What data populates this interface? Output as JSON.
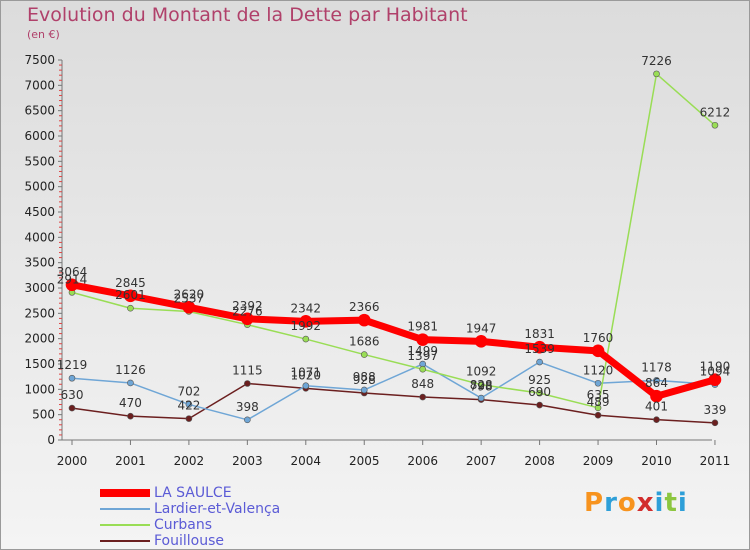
{
  "title": "Evolution du Montant de la Dette par Habitant",
  "unit": "(en €)",
  "logo": {
    "text": "Proxiti",
    "colors": [
      "#f7931e",
      "#2e9fd8",
      "#f7931e",
      "#d22d2d",
      "#2e9fd8",
      "#8cc63f",
      "#2e9fd8"
    ]
  },
  "chart_data": {
    "type": "line",
    "categories": [
      "2000",
      "2001",
      "2002",
      "2003",
      "2004",
      "2005",
      "2006",
      "2007",
      "2008",
      "2009",
      "2010",
      "2011"
    ],
    "ylim": [
      0,
      7500
    ],
    "yticks": [
      0,
      500,
      1000,
      1500,
      2000,
      2500,
      3000,
      3500,
      4000,
      4500,
      5000,
      5500,
      6000,
      6500,
      7000,
      7500
    ],
    "grid": false,
    "legend": "bottom-left",
    "series": [
      {
        "name": "Fouillouse",
        "color": "#6b1f1f",
        "width": 1.5,
        "labels": true,
        "values": [
          630,
          470,
          422,
          1115,
          1020,
          928,
          848,
          798,
          690,
          489,
          401,
          339
        ]
      },
      {
        "name": "Lardier-et-Valença",
        "color": "#6fa6d6",
        "width": 1.5,
        "labels": true,
        "values": [
          1219,
          1126,
          702,
          398,
          1071,
          988,
          1499,
          828,
          1539,
          1120,
          1178,
          1094
        ]
      },
      {
        "name": "Curbans",
        "color": "#99dd55",
        "width": 1.5,
        "labels": true,
        "values": [
          2914,
          2601,
          2537,
          2276,
          1992,
          1686,
          1397,
          1092,
          925,
          635,
          7226,
          6212
        ]
      },
      {
        "name": "LA SAULCE",
        "color": "#ff0000",
        "width": 7,
        "labels": true,
        "values": [
          3064,
          2845,
          2620,
          2392,
          2342,
          2366,
          1981,
          1947,
          1831,
          1760,
          864,
          1190
        ]
      }
    ]
  }
}
